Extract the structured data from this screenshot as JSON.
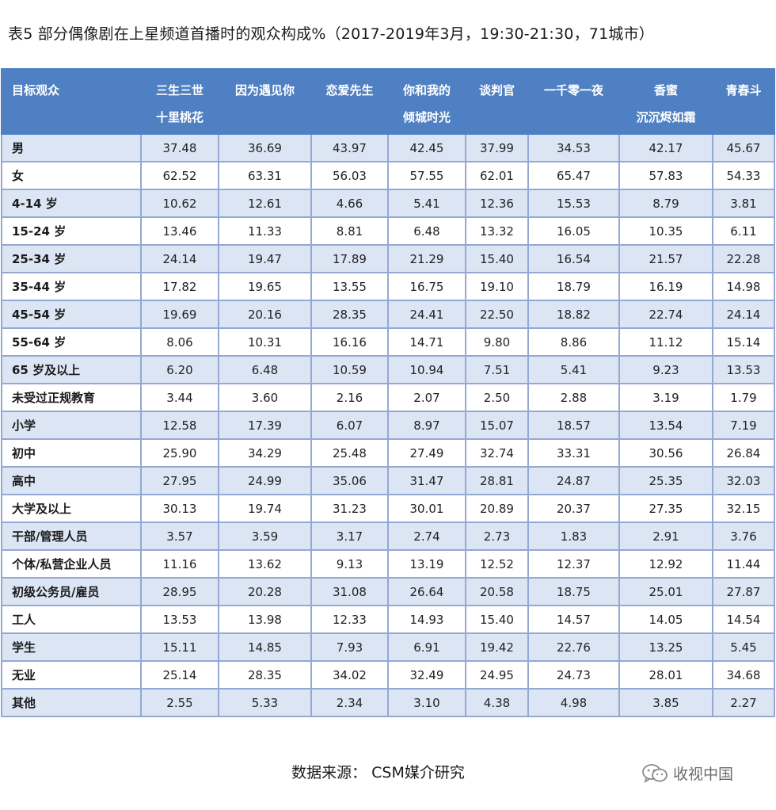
{
  "title": "表5  部分偶像剧在上星频道首播时的观众构成%（2017-2019年3月，19:30-21:30，71城市）",
  "table": {
    "header": [
      {
        "line1": "目标观众",
        "line2": ""
      },
      {
        "line1": "三生三世",
        "line2": "十里桃花"
      },
      {
        "line1": "因为遇见你",
        "line2": ""
      },
      {
        "line1": "恋爱先生",
        "line2": ""
      },
      {
        "line1": "你和我的",
        "line2": "倾城时光"
      },
      {
        "line1": "谈判官",
        "line2": ""
      },
      {
        "line1": "一千零一夜",
        "line2": ""
      },
      {
        "line1": "香蜜",
        "line2": "沉沉烬如霜"
      },
      {
        "line1": "青春斗",
        "line2": ""
      }
    ],
    "rows": [
      {
        "label": "男",
        "values": [
          "37.48",
          "36.69",
          "43.97",
          "42.45",
          "37.99",
          "34.53",
          "42.17",
          "45.67"
        ]
      },
      {
        "label": "女",
        "values": [
          "62.52",
          "63.31",
          "56.03",
          "57.55",
          "62.01",
          "65.47",
          "57.83",
          "54.33"
        ]
      },
      {
        "label": "4-14 岁",
        "values": [
          "10.62",
          "12.61",
          "4.66",
          "5.41",
          "12.36",
          "15.53",
          "8.79",
          "3.81"
        ]
      },
      {
        "label": "15-24 岁",
        "values": [
          "13.46",
          "11.33",
          "8.81",
          "6.48",
          "13.32",
          "16.05",
          "10.35",
          "6.11"
        ]
      },
      {
        "label": "25-34 岁",
        "values": [
          "24.14",
          "19.47",
          "17.89",
          "21.29",
          "15.40",
          "16.54",
          "21.57",
          "22.28"
        ]
      },
      {
        "label": "35-44 岁",
        "values": [
          "17.82",
          "19.65",
          "13.55",
          "16.75",
          "19.10",
          "18.79",
          "16.19",
          "14.98"
        ]
      },
      {
        "label": "45-54 岁",
        "values": [
          "19.69",
          "20.16",
          "28.35",
          "24.41",
          "22.50",
          "18.82",
          "22.74",
          "24.14"
        ]
      },
      {
        "label": "55-64 岁",
        "values": [
          "8.06",
          "10.31",
          "16.16",
          "14.71",
          "9.80",
          "8.86",
          "11.12",
          "15.14"
        ]
      },
      {
        "label": "65 岁及以上",
        "values": [
          "6.20",
          "6.48",
          "10.59",
          "10.94",
          "7.51",
          "5.41",
          "9.23",
          "13.53"
        ]
      },
      {
        "label": "未受过正规教育",
        "values": [
          "3.44",
          "3.60",
          "2.16",
          "2.07",
          "2.50",
          "2.88",
          "3.19",
          "1.79"
        ]
      },
      {
        "label": "小学",
        "values": [
          "12.58",
          "17.39",
          "6.07",
          "8.97",
          "15.07",
          "18.57",
          "13.54",
          "7.19"
        ]
      },
      {
        "label": "初中",
        "values": [
          "25.90",
          "34.29",
          "25.48",
          "27.49",
          "32.74",
          "33.31",
          "30.56",
          "26.84"
        ]
      },
      {
        "label": "高中",
        "values": [
          "27.95",
          "24.99",
          "35.06",
          "31.47",
          "28.81",
          "24.87",
          "25.35",
          "32.03"
        ]
      },
      {
        "label": "大学及以上",
        "values": [
          "30.13",
          "19.74",
          "31.23",
          "30.01",
          "20.89",
          "20.37",
          "27.35",
          "32.15"
        ]
      },
      {
        "label": "干部/管理人员",
        "values": [
          "3.57",
          "3.59",
          "3.17",
          "2.74",
          "2.73",
          "1.83",
          "2.91",
          "3.76"
        ]
      },
      {
        "label": "个体/私营企业人员",
        "values": [
          "11.16",
          "13.62",
          "9.13",
          "13.19",
          "12.52",
          "12.37",
          "12.92",
          "11.44"
        ]
      },
      {
        "label": "初级公务员/雇员",
        "values": [
          "28.95",
          "20.28",
          "31.08",
          "26.64",
          "20.58",
          "18.75",
          "25.01",
          "27.87"
        ]
      },
      {
        "label": "工人",
        "values": [
          "13.53",
          "13.98",
          "12.33",
          "14.93",
          "15.40",
          "14.57",
          "14.05",
          "14.54"
        ]
      },
      {
        "label": "学生",
        "values": [
          "15.11",
          "14.85",
          "7.93",
          "6.91",
          "19.42",
          "22.76",
          "13.25",
          "5.45"
        ]
      },
      {
        "label": "无业",
        "values": [
          "25.14",
          "28.35",
          "34.02",
          "32.49",
          "24.95",
          "24.73",
          "28.01",
          "34.68"
        ]
      },
      {
        "label": "其他",
        "values": [
          "2.55",
          "5.33",
          "2.34",
          "3.10",
          "4.38",
          "4.98",
          "3.85",
          "2.27"
        ]
      }
    ]
  },
  "source": "数据来源：  CSM媒介研究",
  "watermark": {
    "icon": "wechat-icon",
    "text": "收视中国"
  },
  "colors": {
    "header_bg": "#4f80c3",
    "band_bg": "#dbe5f4",
    "border": "#93a9d3"
  }
}
